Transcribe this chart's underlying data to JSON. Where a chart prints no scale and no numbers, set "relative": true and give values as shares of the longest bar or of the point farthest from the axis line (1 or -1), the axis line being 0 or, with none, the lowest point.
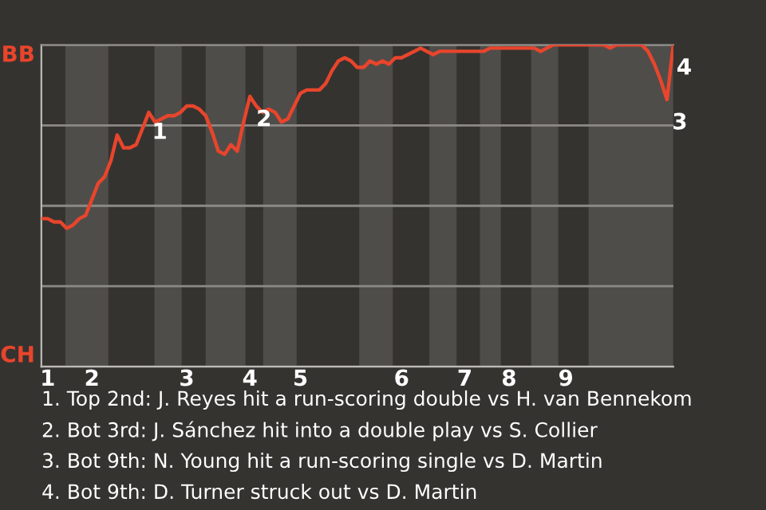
{
  "chart_data": {
    "type": "line",
    "relative": true,
    "categories": [
      null,
      "1",
      null,
      null,
      null,
      null,
      null,
      null,
      "2",
      null,
      null,
      null,
      null,
      null,
      null,
      null,
      null,
      null,
      null,
      null,
      null,
      null,
      null,
      "3",
      null,
      null,
      null,
      null,
      null,
      null,
      null,
      null,
      null,
      "4",
      null,
      null,
      null,
      null,
      null,
      null,
      null,
      "5",
      null,
      null,
      null,
      null,
      null,
      null,
      null,
      null,
      null,
      null,
      null,
      null,
      null,
      null,
      null,
      "6",
      null,
      null,
      null,
      null,
      null,
      null,
      null,
      null,
      null,
      "7",
      null,
      null,
      null,
      null,
      null,
      null,
      "8",
      null,
      null,
      null,
      null,
      null,
      null,
      null,
      null,
      "9",
      null,
      null,
      null,
      null,
      null,
      null,
      null,
      null,
      null,
      null,
      null,
      null,
      null,
      null,
      null,
      null,
      null
    ],
    "series": [
      {
        "color": "#e8452c",
        "values": [
          0.46,
          0.46,
          0.45,
          0.45,
          0.43,
          0.44,
          0.46,
          0.47,
          0.52,
          0.57,
          0.59,
          0.64,
          0.72,
          0.68,
          0.68,
          0.69,
          0.74,
          0.79,
          0.76,
          0.77,
          0.78,
          0.78,
          0.79,
          0.81,
          0.81,
          0.8,
          0.78,
          0.73,
          0.67,
          0.66,
          0.69,
          0.67,
          0.76,
          0.84,
          0.81,
          0.79,
          0.8,
          0.79,
          0.76,
          0.77,
          0.81,
          0.85,
          0.86,
          0.86,
          0.86,
          0.88,
          0.92,
          0.95,
          0.96,
          0.95,
          0.93,
          0.93,
          0.95,
          0.94,
          0.95,
          0.94,
          0.96,
          0.96,
          0.97,
          0.98,
          0.99,
          0.98,
          0.97,
          0.98,
          0.98,
          0.98,
          0.98,
          0.98,
          0.98,
          0.98,
          0.98,
          0.99,
          0.99,
          0.99,
          0.99,
          0.99,
          0.99,
          0.99,
          0.99,
          0.98,
          0.99,
          1,
          1,
          1,
          1,
          1,
          1,
          1,
          1,
          1,
          0.99,
          1,
          1,
          1,
          1,
          1,
          0.98,
          0.94,
          0.89,
          0.83,
          1
        ]
      }
    ],
    "grid": "y",
    "legend": false,
    "marker": "none",
    "line_style": "solid",
    "annotations": [
      "BB",
      "CH",
      "1",
      "2",
      "3",
      "4",
      "1. Top 2nd: J. Reyes hit a run-scoring double vs H. van Bennekom",
      "2. Bot 3rd: J. Sánchez hit into a double play vs S. Collier",
      "3. Bot 9th: N. Young hit a run-scoring single vs D. Martin",
      "4. Bot 9th: D. Turner struck out vs D. Martin"
    ]
  }
}
